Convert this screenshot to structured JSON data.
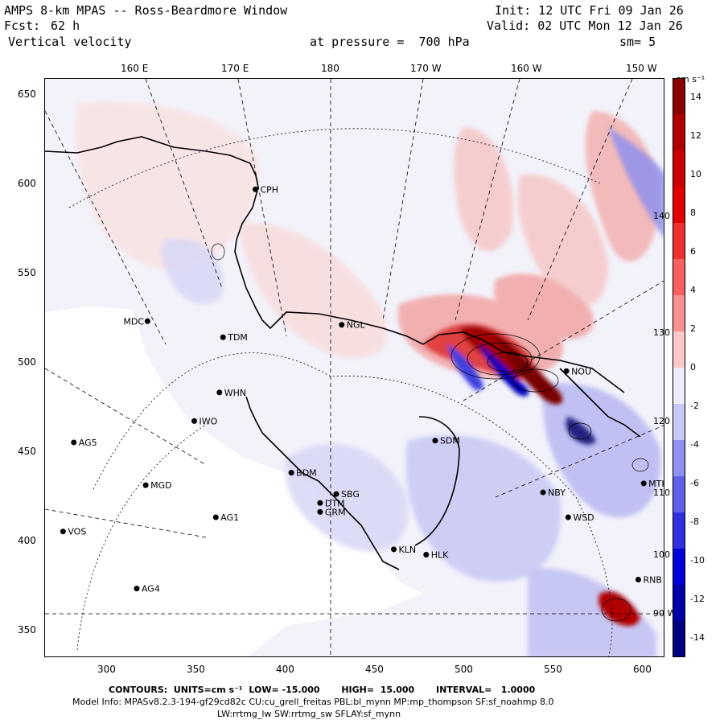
{
  "header": {
    "title": "AMPS 8-km MPAS -- Ross-Beardmore Window",
    "init": "Init: 12 UTC Fri 09 Jan 26",
    "fcst_label": "Fcst:",
    "fcst_value": "62 h",
    "valid": "Valid: 02 UTC Mon 12 Jan 26",
    "field": "Vertical velocity",
    "level": "at pressure =  700 hPa",
    "smoothing": "sm= 5"
  },
  "lon_labels": [
    "160 E",
    "170 E",
    "180",
    "170 W",
    "160 W",
    "150 W"
  ],
  "x_ticks": [
    "300",
    "350",
    "400",
    "450",
    "500",
    "550",
    "600"
  ],
  "y_ticks": [
    "650",
    "600",
    "550",
    "500",
    "450",
    "400",
    "350"
  ],
  "inner_lon_labels": [
    "140 W",
    "130 W",
    "120 W",
    "110 W",
    "100 W",
    "90 W"
  ],
  "colorbar": {
    "units": "cm s⁻¹",
    "ticks": [
      "14",
      "12",
      "10",
      "8",
      "6",
      "4",
      "2",
      "0",
      "-2",
      "-4",
      "-6",
      "-8",
      "-10",
      "-12",
      "-14"
    ],
    "colors": [
      "#8b0000",
      "#b00000",
      "#cc0000",
      "#e00000",
      "#f03030",
      "#f86060",
      "#fa9090",
      "#fdc8c8",
      "#eeeefa",
      "#c8c8f5",
      "#9090ee",
      "#6060e8",
      "#3030e0",
      "#0000d8",
      "#0000a8",
      "#000080"
    ]
  },
  "stations": [
    {
      "name": "CPH",
      "x": 382,
      "y": 596
    },
    {
      "name": "NGL",
      "x": 430,
      "y": 520
    },
    {
      "name": "MDC",
      "x": 322,
      "y": 522
    },
    {
      "name": "TDM",
      "x": 364,
      "y": 513
    },
    {
      "name": "WHN",
      "x": 362,
      "y": 482
    },
    {
      "name": "IWO",
      "x": 348,
      "y": 466
    },
    {
      "name": "AG5",
      "x": 281,
      "y": 454
    },
    {
      "name": "SDM",
      "x": 482,
      "y": 455
    },
    {
      "name": "BDM",
      "x": 402,
      "y": 437
    },
    {
      "name": "MGD",
      "x": 321,
      "y": 430
    },
    {
      "name": "DTM",
      "x": 418,
      "y": 420
    },
    {
      "name": "SBG",
      "x": 427,
      "y": 425
    },
    {
      "name": "GRM",
      "x": 418,
      "y": 415
    },
    {
      "name": "NBY",
      "x": 542,
      "y": 426
    },
    {
      "name": "AG1",
      "x": 360,
      "y": 412
    },
    {
      "name": "WSD",
      "x": 556,
      "y": 412
    },
    {
      "name": "VOS",
      "x": 275,
      "y": 404
    },
    {
      "name": "KLN",
      "x": 459,
      "y": 394
    },
    {
      "name": "HLK",
      "x": 477,
      "y": 391
    },
    {
      "name": "AG4",
      "x": 316,
      "y": 372
    },
    {
      "name": "MTK",
      "x": 598,
      "y": 431
    },
    {
      "name": "RNB",
      "x": 595,
      "y": 377
    },
    {
      "name": "NOU",
      "x": 555,
      "y": 494
    }
  ],
  "footer": {
    "contours": "CONTOURS:  UNITS=cm s⁻¹  LOW= -15.000       HIGH=  15.000       INTERVAL=   1.0000",
    "model_info": "Model Info: MPASv8.2.3-194-gf29cd82c CU:cu_grell_freitas PBL:bl_mynn MP:mp_thompson SF:sf_noahmp 8.0",
    "model_info2": "LW:rrtmg_lw SW:rrtmg_sw SFLAY:sf_mynn"
  }
}
